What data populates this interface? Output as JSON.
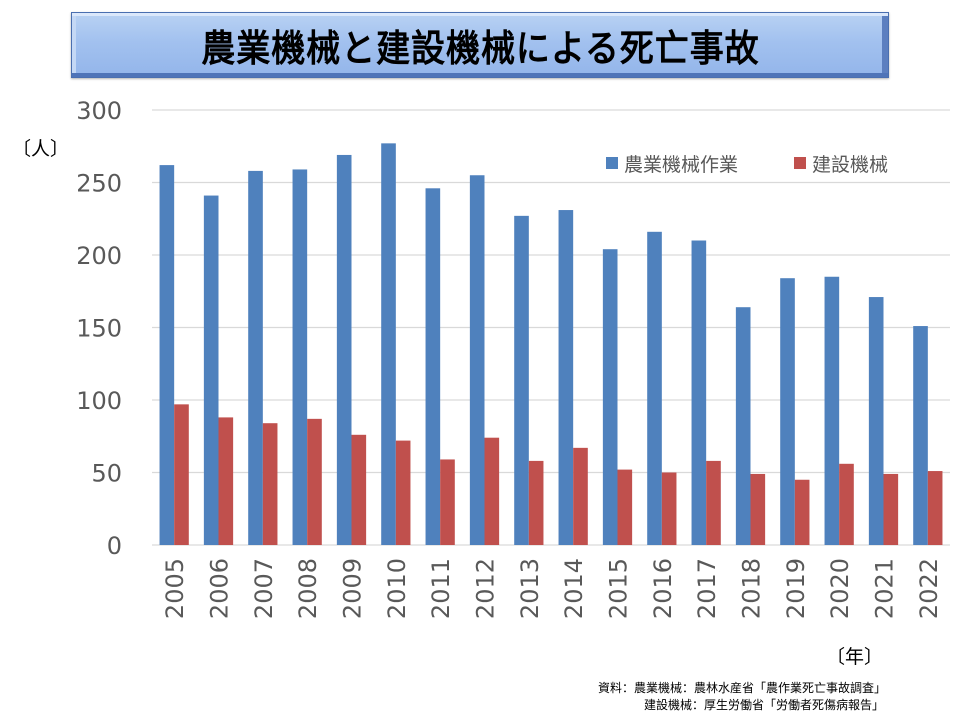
{
  "chart_data": {
    "type": "bar",
    "title": "農業機械と建設機械による死亡事故",
    "xlabel": "〔年〕",
    "ylabel": "〔人〕",
    "ylim": [
      0,
      300
    ],
    "yticks": [
      0,
      50,
      100,
      150,
      200,
      250,
      300
    ],
    "ytick_labels": [
      "0",
      "50",
      "100",
      "150",
      "200",
      "250",
      "300"
    ],
    "grid": true,
    "legend_position": "top-right",
    "categories": [
      "2005",
      "2006",
      "2007",
      "2008",
      "2009",
      "2010",
      "2011",
      "2012",
      "2013",
      "2014",
      "2015",
      "2016",
      "2017",
      "2018",
      "2019",
      "2020",
      "2021",
      "2022"
    ],
    "series": [
      {
        "name": "農業機械作業",
        "color": "#4F81BD",
        "values": [
          262,
          241,
          258,
          259,
          269,
          277,
          246,
          255,
          227,
          231,
          204,
          216,
          210,
          164,
          184,
          185,
          171,
          151
        ]
      },
      {
        "name": "建設機械",
        "color": "#C0504D",
        "values": [
          97,
          88,
          84,
          87,
          76,
          72,
          59,
          74,
          58,
          67,
          52,
          50,
          58,
          49,
          45,
          56,
          49,
          51
        ]
      }
    ]
  },
  "source": {
    "line1": "資料：農業機械：農林水産省「農作業死亡事故調査」",
    "line2": "建設機械：厚生労働省「労働者死傷病報告」"
  },
  "colors": {
    "gridline": "#D9D9D9",
    "tick_text": "#595959"
  }
}
